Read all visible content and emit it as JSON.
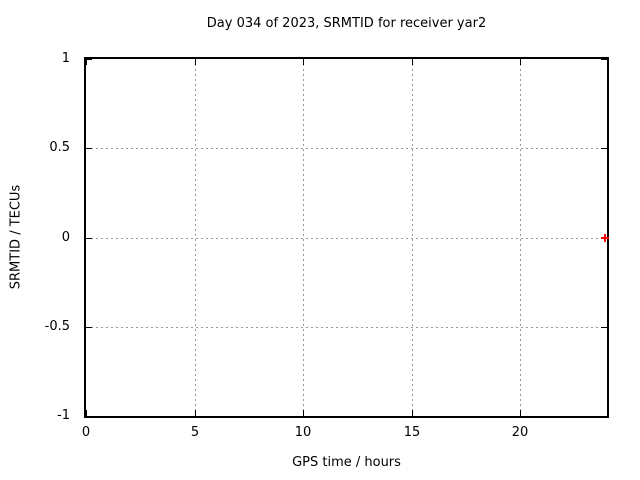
{
  "window": {
    "background": "#ffffff"
  },
  "colors": {
    "background": "#ffffff",
    "axis_border": "#000000",
    "grid": "#999999",
    "text": "#000000",
    "marker": "#ff0000"
  },
  "chart_data": {
    "type": "scatter",
    "title": "Day 034 of 2023, SRMTID for receiver yar2",
    "xlabel": "GPS time / hours",
    "ylabel": "SRMTID / TECUs",
    "xlim": [
      0,
      24
    ],
    "ylim": [
      -1,
      1
    ],
    "xticks": {
      "values": [
        0,
        5,
        10,
        15,
        20
      ],
      "labels": [
        "0",
        "5",
        "10",
        "15",
        "20"
      ]
    },
    "yticks": {
      "values": [
        -1,
        -0.5,
        0,
        0.5,
        1
      ],
      "labels": [
        "-1",
        "-0.5",
        "0",
        "0.5",
        "1"
      ]
    },
    "grid": true,
    "grid_style": "dotted",
    "tick_direction": "in-mirrored",
    "legend": "none",
    "series": [
      {
        "name": "SRMTID",
        "marker": "plus",
        "color": "#ff0000",
        "points": [
          {
            "x": 23.9,
            "y": 0.0
          }
        ]
      }
    ]
  }
}
